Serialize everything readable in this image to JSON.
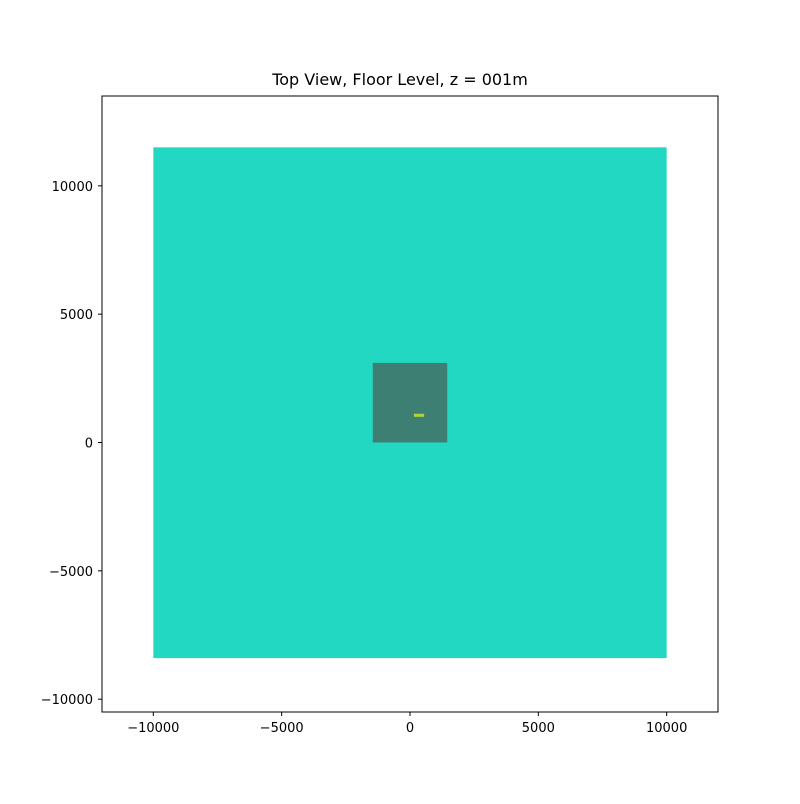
{
  "chart_data": {
    "type": "heatmap",
    "title": "Top View, Floor Level, z = 001m",
    "xlabel": "",
    "ylabel": "",
    "xlim": [
      -12000,
      12000
    ],
    "ylim": [
      -10500,
      13500
    ],
    "xticks": [
      -10000,
      -5000,
      0,
      5000,
      10000
    ],
    "yticks": [
      -10000,
      -5000,
      0,
      5000,
      10000
    ],
    "xtick_labels": [
      "−10000",
      "−5000",
      "0",
      "5000",
      "10000"
    ],
    "ytick_labels": [
      "−10000",
      "−5000",
      "0",
      "5000",
      "10000"
    ],
    "grid": false,
    "regions": [
      {
        "x0": -10000,
        "x1": 10000,
        "y0": -8400,
        "y1": 11500,
        "color": "#22d8c2"
      },
      {
        "x0": -1450,
        "x1": 1450,
        "y0": 0,
        "y1": 3100,
        "color": "#3e7f74"
      },
      {
        "x0": 150,
        "x1": 550,
        "y0": 1000,
        "y1": 1120,
        "color": "#b0d23a"
      }
    ]
  }
}
